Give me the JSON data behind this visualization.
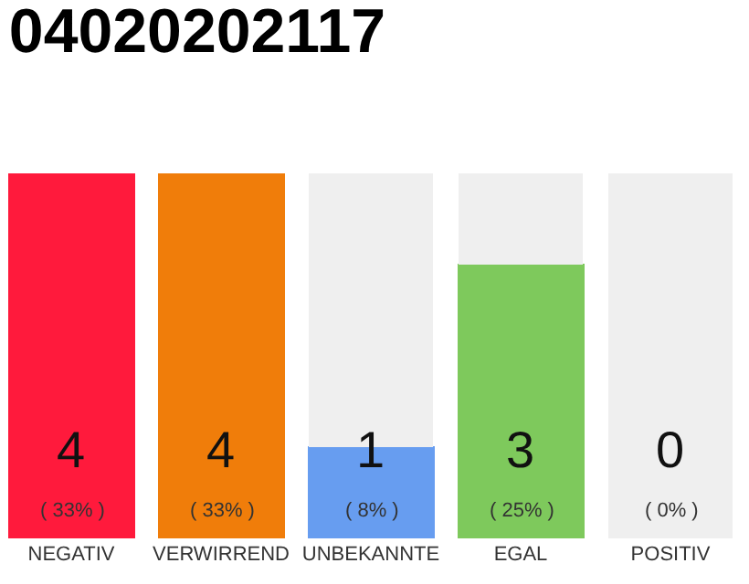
{
  "chart_data": {
    "type": "bar",
    "title": "04020202117",
    "categories": [
      "NEGATIV",
      "VERWIRREND",
      "UNBEKANNTE",
      "EGAL",
      "POSITIV"
    ],
    "stacked": true,
    "series": [
      {
        "values": [
          4,
          4,
          1,
          3,
          0
        ],
        "colors": [
          "#ff1a3c",
          "#f07d0a",
          "#679df0",
          "#7ec95c",
          "#22aa44"
        ],
        "value_labels": [
          "4\n( 33% )",
          "4\n( 33% )",
          "1\n( 8% )",
          "3\n( 25% )",
          "0\n( 0% )"
        ]
      },
      {
        "values": [
          0,
          0,
          3,
          1,
          4
        ],
        "color": "#efefef"
      }
    ],
    "ylim": [
      0,
      4
    ],
    "tick_labels": "x"
  }
}
